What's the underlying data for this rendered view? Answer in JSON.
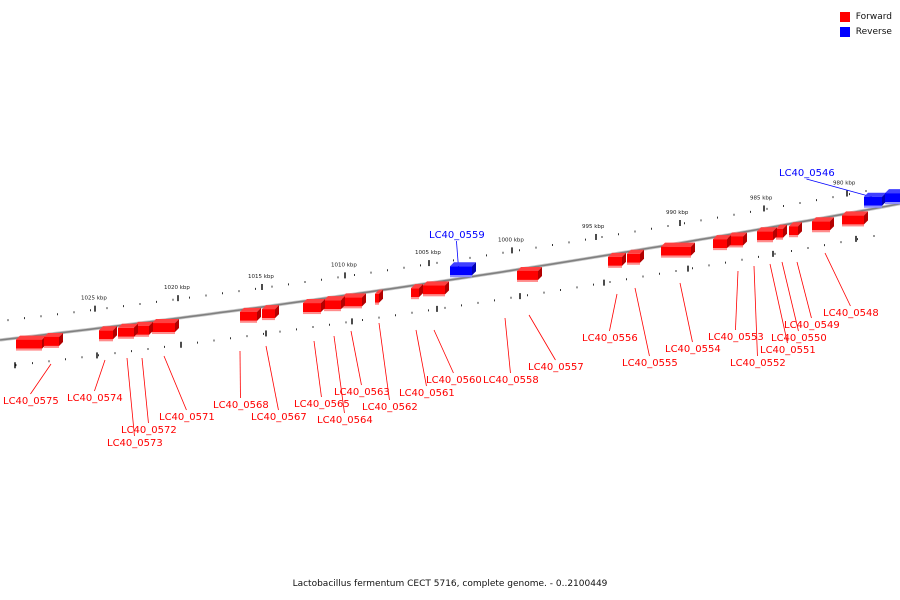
{
  "colors": {
    "forward": "#ff0000",
    "reverse": "#0000ff",
    "backbone": "#808080"
  },
  "legend": [
    {
      "label": "Forward",
      "strand": "forward"
    },
    {
      "label": "Reverse",
      "strand": "reverse"
    }
  ],
  "caption": "Lactobacillus fermentum CECT 5716, complete genome. - 0..2100449",
  "ticks": [
    "980 kbp",
    "985 kbp",
    "990 kbp",
    "995 kbp",
    "1000 kbp",
    "1005 kbp",
    "1010 kbp",
    "1015 kbp",
    "1020 kbp",
    "1025 kbp"
  ],
  "genes": [
    {
      "name": "LC40_0546",
      "strand": "reverse"
    },
    {
      "name": "LC40_0548",
      "strand": "forward"
    },
    {
      "name": "LC40_0549",
      "strand": "forward"
    },
    {
      "name": "LC40_0550",
      "strand": "forward"
    },
    {
      "name": "LC40_0551",
      "strand": "forward"
    },
    {
      "name": "LC40_0552",
      "strand": "forward"
    },
    {
      "name": "LC40_0553",
      "strand": "forward"
    },
    {
      "name": "LC40_0554",
      "strand": "forward"
    },
    {
      "name": "LC40_0555",
      "strand": "forward"
    },
    {
      "name": "LC40_0556",
      "strand": "forward"
    },
    {
      "name": "LC40_0557",
      "strand": "forward"
    },
    {
      "name": "LC40_0558",
      "strand": "forward"
    },
    {
      "name": "LC40_0559",
      "strand": "reverse"
    },
    {
      "name": "LC40_0560",
      "strand": "forward"
    },
    {
      "name": "LC40_0561",
      "strand": "forward"
    },
    {
      "name": "LC40_0562",
      "strand": "forward"
    },
    {
      "name": "LC40_0563",
      "strand": "forward"
    },
    {
      "name": "LC40_0564",
      "strand": "forward"
    },
    {
      "name": "LC40_0565",
      "strand": "forward"
    },
    {
      "name": "LC40_0567",
      "strand": "forward"
    },
    {
      "name": "LC40_0568",
      "strand": "forward"
    },
    {
      "name": "LC40_0571",
      "strand": "forward"
    },
    {
      "name": "LC40_0572",
      "strand": "forward"
    },
    {
      "name": "LC40_0573",
      "strand": "forward"
    },
    {
      "name": "LC40_0574",
      "strand": "forward"
    },
    {
      "name": "LC40_0575",
      "strand": "forward"
    }
  ]
}
